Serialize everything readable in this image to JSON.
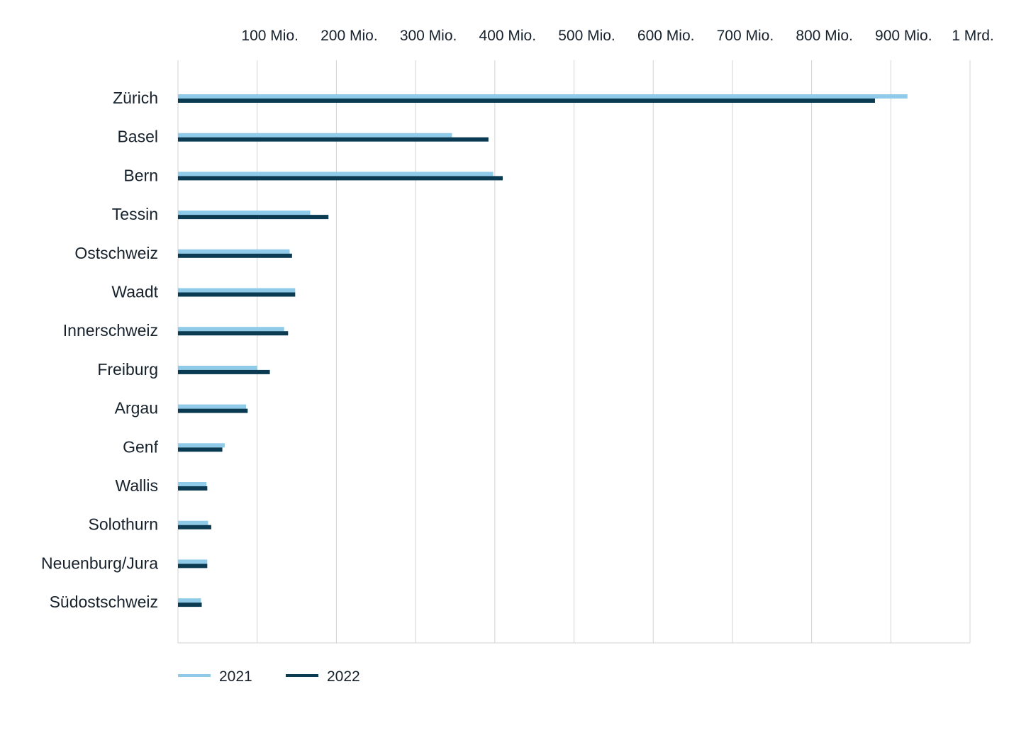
{
  "chart_data": {
    "type": "bar",
    "orientation": "horizontal",
    "categories": [
      "Zürich",
      "Basel",
      "Bern",
      "Tessin",
      "Ostschweiz",
      "Waadt",
      "Innerschweiz",
      "Freiburg",
      "Argau",
      "Genf",
      "Wallis",
      "Solothurn",
      "Neuenburg/Jura",
      "Südostschweiz"
    ],
    "series": [
      {
        "name": "2021",
        "color": "#8fcbe8",
        "values": [
          921,
          346,
          398,
          167,
          141,
          148,
          134,
          100,
          86,
          59,
          36,
          38,
          37,
          29
        ]
      },
      {
        "name": "2022",
        "color": "#0b3b52",
        "values": [
          880,
          392,
          410,
          190,
          144,
          148,
          139,
          116,
          88,
          56,
          37,
          42,
          37,
          30
        ]
      }
    ],
    "xlim": [
      0,
      1000
    ],
    "x_ticks": [
      100,
      200,
      300,
      400,
      500,
      600,
      700,
      800,
      900,
      1000
    ],
    "x_tick_labels": [
      "100 Mio.",
      "200 Mio.",
      "300 Mio.",
      "400 Mio.",
      "500 Mio.",
      "600 Mio.",
      "700 Mio.",
      "800 Mio.",
      "900 Mio.",
      "1 Mrd."
    ],
    "x_axis_position": "top",
    "grid": "vertical",
    "legend_position": "bottom-left",
    "grid_color": "#d0d3d6"
  }
}
